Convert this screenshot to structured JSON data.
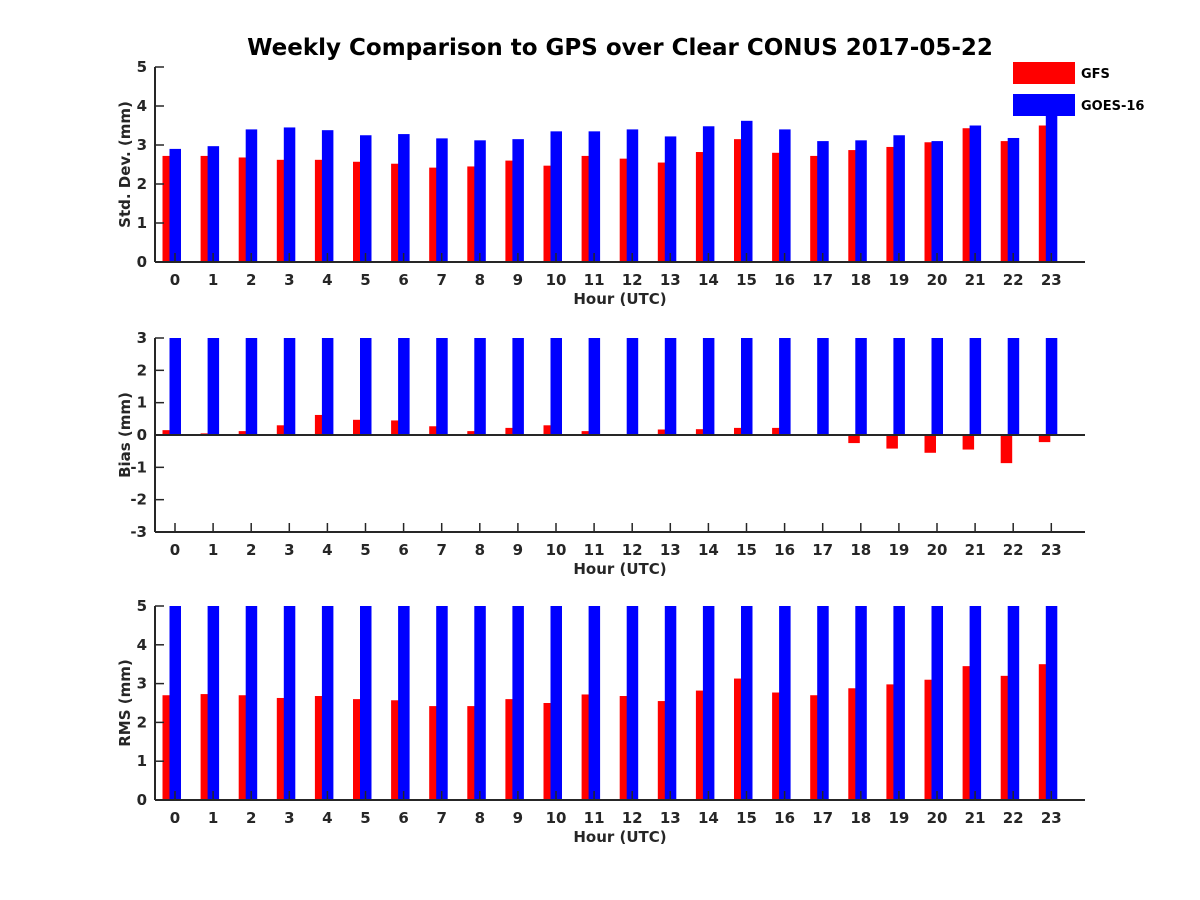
{
  "chart_data": {
    "type": "bar",
    "title": "Weekly Comparison to GPS over Clear CONUS 2017-05-22",
    "categories": [
      "0",
      "1",
      "2",
      "3",
      "4",
      "5",
      "6",
      "7",
      "8",
      "9",
      "10",
      "11",
      "12",
      "13",
      "14",
      "15",
      "16",
      "17",
      "18",
      "19",
      "20",
      "21",
      "22",
      "23"
    ],
    "legend": {
      "placement": "top-right",
      "entries": [
        {
          "name": "GFS",
          "color": "#ff0000"
        },
        {
          "name": "GOES-16",
          "color": "#0000ff"
        }
      ]
    },
    "panels": [
      {
        "id": "std",
        "xlabel": "Hour (UTC)",
        "ylabel": "Std. Dev. (mm)",
        "ylim": [
          0,
          5
        ],
        "yticks": [
          "0",
          "1",
          "2",
          "3",
          "4",
          "5"
        ],
        "series": [
          {
            "name": "GFS",
            "color": "#ff0000",
            "values": [
              2.72,
              2.72,
              2.68,
              2.62,
              2.62,
              2.57,
              2.52,
              2.42,
              2.45,
              2.6,
              2.47,
              2.72,
              2.65,
              2.55,
              2.82,
              3.15,
              2.8,
              2.72,
              2.87,
              2.95,
              3.07,
              3.43,
              3.1,
              3.5
            ]
          },
          {
            "name": "GOES-16",
            "color": "#0000ff",
            "values": [
              2.9,
              2.97,
              3.4,
              3.45,
              3.38,
              3.25,
              3.28,
              3.17,
              3.12,
              3.15,
              3.35,
              3.35,
              3.4,
              3.22,
              3.48,
              3.62,
              3.4,
              3.1,
              3.12,
              3.25,
              3.1,
              3.5,
              3.18,
              3.95
            ]
          }
        ]
      },
      {
        "id": "bias",
        "xlabel": "Hour (UTC)",
        "ylabel": "Bias (mm)",
        "ylim": [
          -3,
          3
        ],
        "yticks": [
          "-3",
          "-2",
          "-1",
          "0",
          "1",
          "2",
          "3"
        ],
        "series": [
          {
            "name": "GFS",
            "color": "#ff0000",
            "values": [
              0.15,
              0.05,
              0.12,
              0.3,
              0.62,
              0.47,
              0.45,
              0.27,
              0.12,
              0.22,
              0.3,
              0.12,
              0.03,
              0.17,
              0.18,
              0.22,
              0.22,
              0.0,
              -0.25,
              -0.42,
              -0.55,
              -0.45,
              -0.87,
              -0.22
            ]
          },
          {
            "name": "GOES-16",
            "color": "#0000ff",
            "values": [
              3,
              3,
              3,
              3,
              3,
              3,
              3,
              3,
              3,
              3,
              3,
              3,
              3,
              3,
              3,
              3,
              3,
              3,
              3,
              3,
              3,
              3,
              3,
              3
            ]
          }
        ]
      },
      {
        "id": "rms",
        "xlabel": "Hour (UTC)",
        "ylabel": "RMS (mm)",
        "ylim": [
          0,
          5
        ],
        "yticks": [
          "0",
          "1",
          "2",
          "3",
          "4",
          "5"
        ],
        "series": [
          {
            "name": "GFS",
            "color": "#ff0000",
            "values": [
              2.7,
              2.73,
              2.7,
              2.63,
              2.68,
              2.6,
              2.57,
              2.42,
              2.42,
              2.6,
              2.5,
              2.72,
              2.68,
              2.55,
              2.82,
              3.13,
              2.77,
              2.7,
              2.88,
              2.98,
              3.1,
              3.45,
              3.2,
              3.5
            ]
          },
          {
            "name": "GOES-16",
            "color": "#0000ff",
            "values": [
              5,
              5,
              5,
              5,
              5,
              5,
              5,
              5,
              5,
              5,
              5,
              5,
              5,
              5,
              5,
              5,
              5,
              5,
              5,
              5,
              5,
              5,
              5,
              5
            ]
          }
        ]
      }
    ]
  }
}
